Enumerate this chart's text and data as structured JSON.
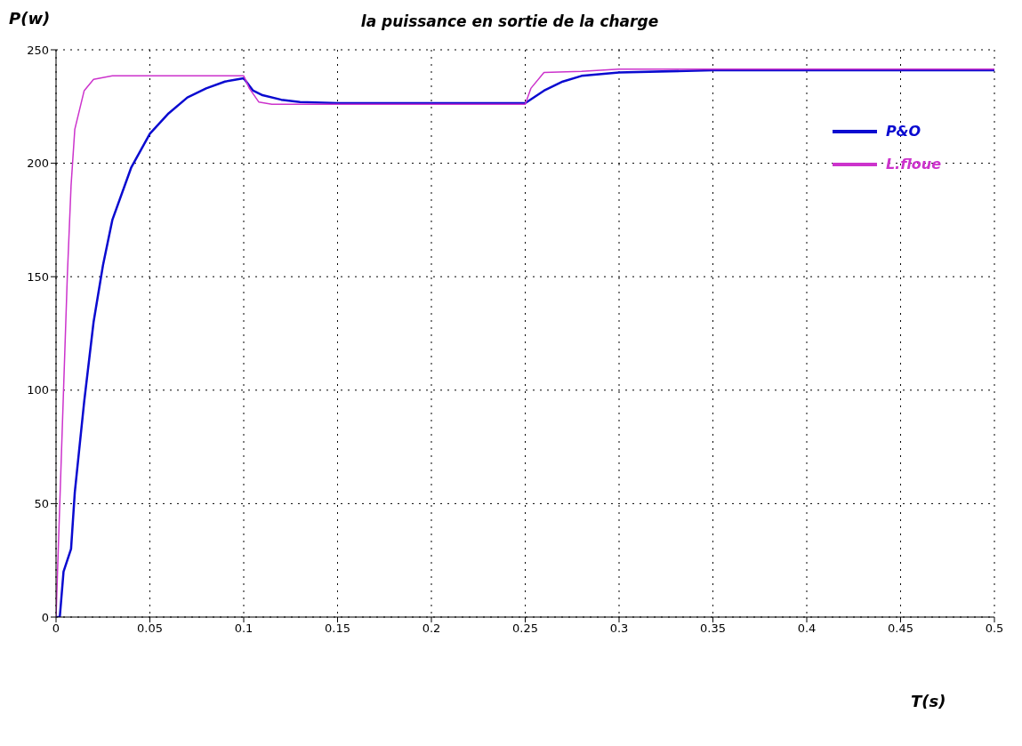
{
  "chart_data": {
    "type": "line",
    "title": "la puissance en sortie de la charge",
    "xlabel": "T(s)",
    "ylabel": "P(w)",
    "xlim": [
      0,
      0.5
    ],
    "xticks": [
      0,
      0.05,
      0.1,
      0.15,
      0.2,
      0.25,
      0.3,
      0.35,
      0.4,
      0.45,
      0.5
    ],
    "ylim": [
      0,
      250
    ],
    "yticks": [
      0,
      50,
      100,
      150,
      200,
      250
    ],
    "grid": true,
    "legend": "top right",
    "line_style": "solid",
    "series": [
      {
        "name": "P&O",
        "color": "#0a0ad0",
        "x": [
          0,
          0.002,
          0.004,
          0.008,
          0.01,
          0.015,
          0.02,
          0.025,
          0.03,
          0.04,
          0.05,
          0.06,
          0.07,
          0.08,
          0.09,
          0.1,
          0.105,
          0.11,
          0.12,
          0.13,
          0.15,
          0.2,
          0.25,
          0.26,
          0.27,
          0.28,
          0.3,
          0.35,
          0.4,
          0.5
        ],
        "values": [
          0,
          0,
          20,
          30,
          55,
          95,
          130,
          155,
          175,
          198,
          213,
          222,
          229,
          233,
          236,
          237.5,
          232,
          230,
          228,
          227,
          226.5,
          226.5,
          226.5,
          232,
          236,
          238.5,
          240,
          241,
          241,
          241
        ]
      },
      {
        "name": "L.floue",
        "color": "#cc33cc",
        "x": [
          0,
          0.002,
          0.004,
          0.006,
          0.008,
          0.01,
          0.015,
          0.02,
          0.03,
          0.1,
          0.103,
          0.108,
          0.115,
          0.25,
          0.253,
          0.26,
          0.28,
          0.3,
          0.5
        ],
        "values": [
          0,
          50,
          100,
          150,
          190,
          215,
          232,
          237,
          238.5,
          238.5,
          233,
          227,
          226,
          226,
          233,
          240,
          240.5,
          241.5,
          241.5
        ]
      }
    ]
  }
}
